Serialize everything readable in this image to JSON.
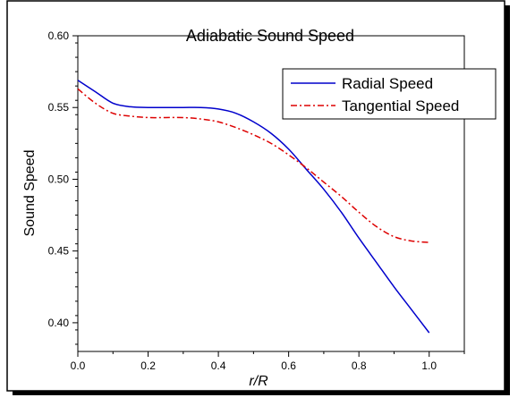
{
  "chart_data": {
    "type": "line",
    "title": "Adiabatic Sound Speed",
    "xlabel": "r/R",
    "ylabel": "Sound Speed",
    "xlim": [
      0.0,
      1.1
    ],
    "ylim": [
      0.38,
      0.6
    ],
    "x_ticks": [
      "0.0",
      "0.2",
      "0.4",
      "0.6",
      "0.8",
      "1.0"
    ],
    "y_ticks": [
      "0.40",
      "0.45",
      "0.50",
      "0.55",
      "0.60"
    ],
    "grid": false,
    "legend_position": "top-right",
    "series": [
      {
        "name": "Radial Speed",
        "color": "#0000cc",
        "style": "solid",
        "x": [
          0.0,
          0.05,
          0.1,
          0.15,
          0.2,
          0.25,
          0.3,
          0.35,
          0.4,
          0.45,
          0.5,
          0.55,
          0.6,
          0.65,
          0.7,
          0.75,
          0.8,
          0.85,
          0.9,
          0.95,
          1.0
        ],
        "y": [
          0.569,
          0.561,
          0.553,
          0.5505,
          0.55,
          0.55,
          0.55,
          0.55,
          0.549,
          0.546,
          0.54,
          0.532,
          0.521,
          0.507,
          0.493,
          0.477,
          0.459,
          0.442,
          0.425,
          0.409,
          0.393
        ]
      },
      {
        "name": "Tangential Speed",
        "color": "#dd0000",
        "style": "dash-dot",
        "x": [
          0.0,
          0.05,
          0.1,
          0.15,
          0.2,
          0.25,
          0.3,
          0.35,
          0.4,
          0.45,
          0.5,
          0.55,
          0.6,
          0.65,
          0.7,
          0.75,
          0.8,
          0.85,
          0.9,
          0.95,
          1.0
        ],
        "y": [
          0.563,
          0.553,
          0.546,
          0.544,
          0.543,
          0.543,
          0.543,
          0.542,
          0.54,
          0.536,
          0.531,
          0.525,
          0.517,
          0.508,
          0.498,
          0.488,
          0.477,
          0.467,
          0.46,
          0.457,
          0.456
        ]
      }
    ]
  }
}
